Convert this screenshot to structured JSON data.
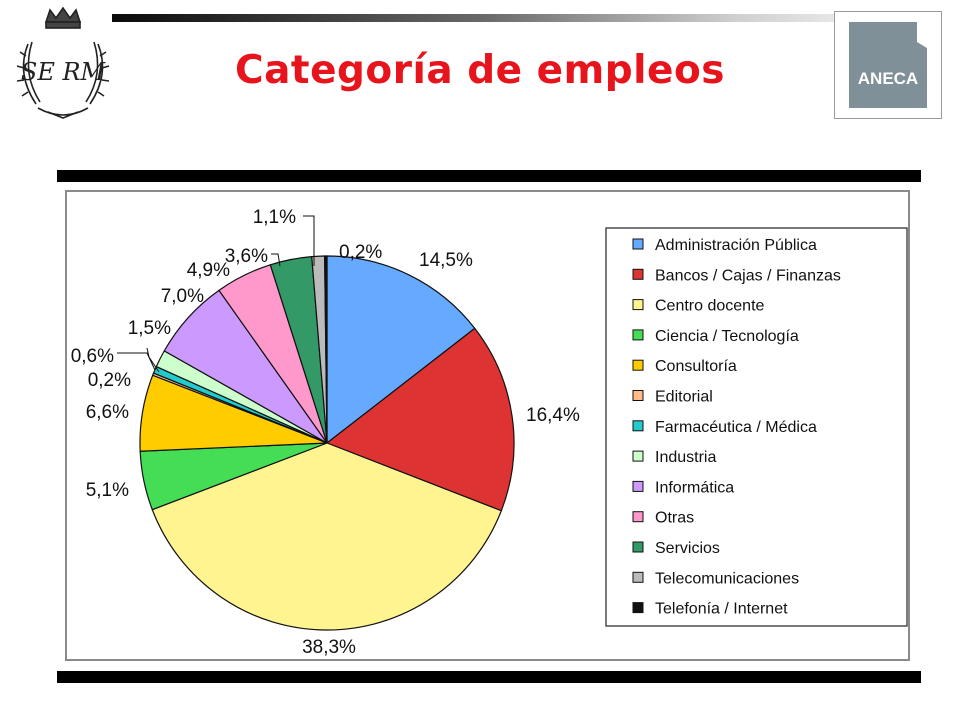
{
  "header": {
    "title": "Categoría de empleos",
    "crest_text": "SE RM",
    "logo_text": "ANECA"
  },
  "colors": {
    "title": "#e8141c",
    "logo_gray": "#7f9098"
  },
  "chart_data": {
    "type": "pie",
    "title": "",
    "start_angle_deg": 0,
    "direction": "clockwise",
    "legend_position": "right",
    "slices": [
      {
        "label": "Administración Pública",
        "value": 14.5,
        "value_label": "14,5%",
        "color": "#66aaff"
      },
      {
        "label": "Bancos / Cajas / Finanzas",
        "value": 16.4,
        "value_label": "16,4%",
        "color": "#dd3333"
      },
      {
        "label": "Centro docente",
        "value": 38.3,
        "value_label": "38,3%",
        "color": "#fff490"
      },
      {
        "label": "Ciencia / Tecnología",
        "value": 5.1,
        "value_label": "5,1%",
        "color": "#44dd55"
      },
      {
        "label": "Consultoría",
        "value": 6.6,
        "value_label": "6,6%",
        "color": "#ffcc00"
      },
      {
        "label": "Editorial",
        "value": 0.2,
        "value_label": "0,2%",
        "color": "#ffbb88"
      },
      {
        "label": "Farmacéutica / Médica",
        "value": 0.6,
        "value_label": "0,6%",
        "color": "#22cccc"
      },
      {
        "label": "Industria",
        "value": 1.5,
        "value_label": "1,5%",
        "color": "#ccffcc"
      },
      {
        "label": "Informática",
        "value": 7.0,
        "value_label": "7,0%",
        "color": "#cc99ff"
      },
      {
        "label": "Otras",
        "value": 4.9,
        "value_label": "4,9%",
        "color": "#ff99cc"
      },
      {
        "label": "Servicios",
        "value": 3.6,
        "value_label": "3,6%",
        "color": "#339966"
      },
      {
        "label": "Telecomunicaciones",
        "value": 1.1,
        "value_label": "1,1%",
        "color": "#bbbbbb"
      },
      {
        "label": "Telefonía / Internet",
        "value": 0.2,
        "value_label": "0,2%",
        "color": "#111111"
      }
    ]
  }
}
